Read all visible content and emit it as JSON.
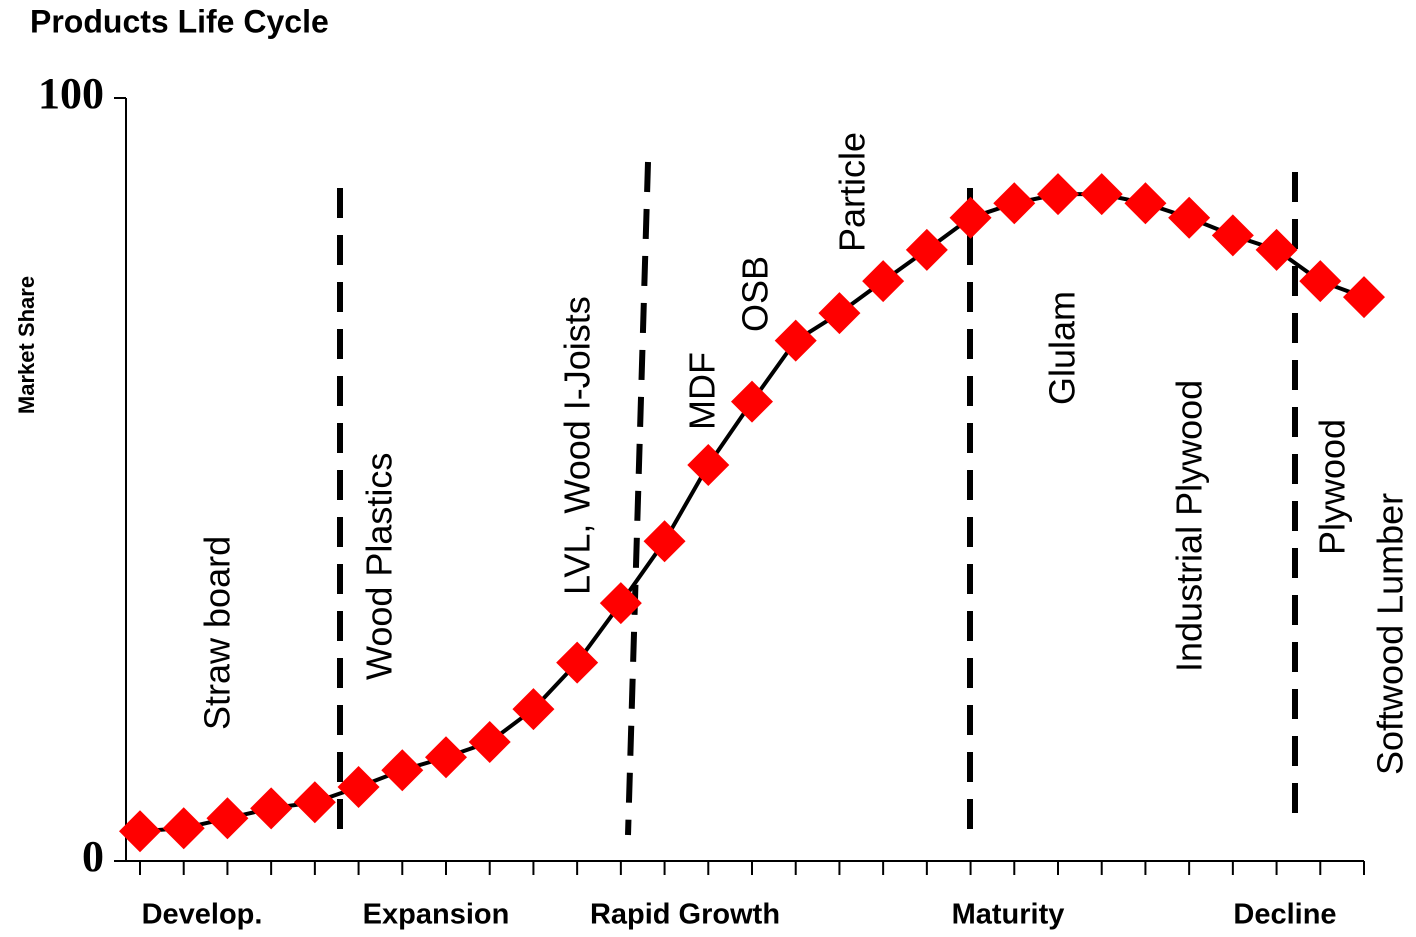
{
  "chart_data": {
    "type": "line",
    "title": "Products Life Cycle",
    "y_label": "Market Share",
    "categories": [
      null,
      null,
      null,
      null,
      null,
      null,
      null,
      null,
      null,
      null,
      null,
      null,
      null,
      null,
      null,
      null,
      null,
      null,
      null,
      null,
      null,
      null,
      null,
      null,
      null,
      null,
      null,
      null,
      null
    ],
    "values": [
      3.9,
      4.3,
      5.6,
      6.9,
      7.7,
      9.7,
      11.9,
      13.6,
      15.6,
      19.9,
      26.0,
      33.8,
      41.9,
      51.9,
      60.2,
      68.2,
      71.8,
      76.0,
      80.1,
      84.3,
      86.2,
      87.4,
      87.4,
      86.2,
      84.3,
      82.0,
      80.1,
      76.0,
      73.9
    ],
    "color": "#ff0000",
    "line_color": "#000000",
    "ylim": [
      0,
      100
    ],
    "yticks": [
      0,
      100
    ],
    "phases": [
      "Develop.",
      "Expansion",
      "Rapid Growth",
      "Maturity",
      "Decline"
    ],
    "annotations": [
      "Straw board",
      "Wood Plastics",
      "LVL, Wood I-Joists",
      "MDF",
      "OSB",
      "Particle",
      "Glulam",
      "Industrial Plywood",
      "Plywood",
      "Softwood Lumber"
    ]
  }
}
